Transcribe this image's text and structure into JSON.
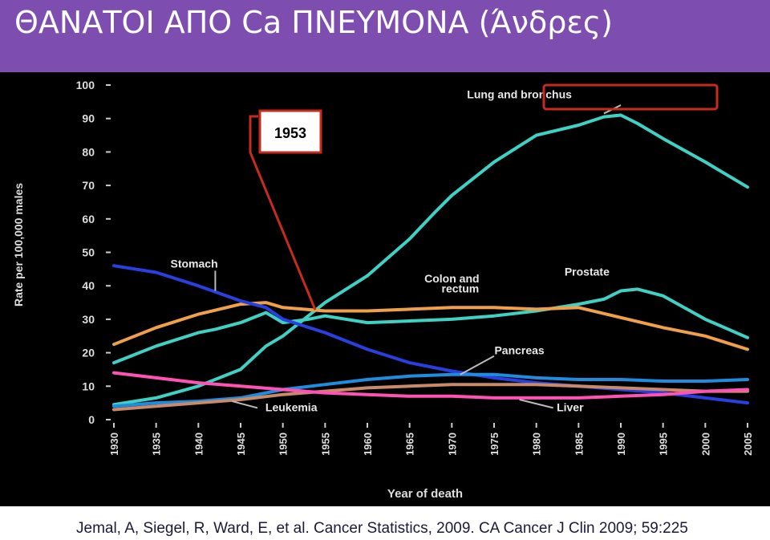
{
  "slide": {
    "title": "ΘΑΝΑΤΟΙ ΑΠΟ Ca ΠΝΕΥΜΟΝΑ (Άνδρες)",
    "citation": "Jemal, A, Siegel, R, Ward, E, et al. Cancer Statistics, 2009. CA Cancer J Clin 2009; 59:225",
    "highlight_year_label": "1953",
    "colors": {
      "title_band": "#7e4db0",
      "chart_bg": "#000000",
      "highlight": "#c62b1e"
    }
  },
  "chart_data": {
    "type": "line",
    "title": "",
    "xlabel": "Year of death",
    "ylabel": "Rate per 100,000 males",
    "xlim": [
      1930,
      2005
    ],
    "ylim": [
      0,
      100
    ],
    "xticks": [
      1930,
      1935,
      1940,
      1945,
      1950,
      1955,
      1960,
      1965,
      1970,
      1975,
      1980,
      1985,
      1990,
      1995,
      2000,
      2005
    ],
    "yticks": [
      0,
      10,
      20,
      30,
      40,
      50,
      60,
      70,
      80,
      90,
      100
    ],
    "grid": false,
    "series": [
      {
        "name": "Lung and bronchus",
        "color": "#3fd1c4",
        "x": [
          1930,
          1935,
          1940,
          1945,
          1948,
          1950,
          1953,
          1955,
          1960,
          1965,
          1968,
          1970,
          1975,
          1980,
          1985,
          1988,
          1990,
          1992,
          1995,
          2000,
          2005
        ],
        "y": [
          4.5,
          6.5,
          10,
          15,
          22,
          25,
          31,
          35,
          43,
          54,
          62,
          67,
          77,
          85,
          88,
          90.5,
          91,
          88.5,
          84,
          77,
          69.5
        ]
      },
      {
        "name": "Colon and rectum",
        "color": "#3fd1c4",
        "x": [
          1930,
          1935,
          1940,
          1942,
          1945,
          1948,
          1950,
          1953,
          1955,
          1960,
          1965,
          1970,
          1975,
          1980,
          1985,
          1988,
          1990,
          1992,
          1995,
          2000,
          2005
        ],
        "y": [
          17,
          22,
          26,
          27,
          29,
          32,
          29,
          30,
          31,
          29,
          29.5,
          30,
          31,
          32.5,
          34.5,
          36,
          38.5,
          39,
          37,
          30,
          24.5
        ]
      },
      {
        "name": "Prostate",
        "color": "#f0a04b",
        "x": [
          1930,
          1935,
          1940,
          1945,
          1948,
          1950,
          1955,
          1960,
          1965,
          1970,
          1975,
          1980,
          1985,
          1990,
          1995,
          2000,
          2005
        ],
        "y": [
          22.5,
          27.5,
          31.5,
          34.5,
          35,
          33.5,
          32.5,
          32.5,
          33,
          33.5,
          33.5,
          33,
          33.5,
          30.5,
          27.5,
          25,
          21
        ]
      },
      {
        "name": "Stomach",
        "color": "#2a3fe0",
        "x": [
          1930,
          1935,
          1940,
          1945,
          1948,
          1950,
          1955,
          1960,
          1965,
          1970,
          1975,
          1980,
          1985,
          1990,
          1995,
          2000,
          2005
        ],
        "y": [
          46,
          44,
          40,
          35.5,
          33.5,
          30,
          26,
          21,
          17,
          14.5,
          12.5,
          11,
          10,
          9,
          8,
          6.5,
          5
        ]
      },
      {
        "name": "Pancreas",
        "color": "#1e8de0",
        "x": [
          1930,
          1935,
          1940,
          1945,
          1950,
          1955,
          1960,
          1965,
          1970,
          1975,
          1980,
          1985,
          1990,
          1995,
          2000,
          2005
        ],
        "y": [
          4,
          5,
          5.5,
          6.5,
          9,
          10.5,
          12,
          13,
          13.5,
          13.5,
          12.5,
          12,
          12,
          11.5,
          11.5,
          12
        ]
      },
      {
        "name": "Leukemia",
        "color": "#c98a6a",
        "x": [
          1930,
          1935,
          1940,
          1945,
          1950,
          1955,
          1960,
          1965,
          1970,
          1975,
          1980,
          1985,
          1990,
          1995,
          2000,
          2005
        ],
        "y": [
          3,
          4,
          5,
          6,
          7.5,
          8.5,
          9.5,
          10,
          10.5,
          10.5,
          10.5,
          10,
          9.5,
          9,
          8.5,
          8.5
        ]
      },
      {
        "name": "Liver",
        "color": "#ff52b4",
        "x": [
          1930,
          1935,
          1940,
          1945,
          1950,
          1955,
          1960,
          1965,
          1970,
          1975,
          1980,
          1985,
          1990,
          1995,
          2000,
          2005
        ],
        "y": [
          14,
          12.5,
          11,
          10,
          9,
          8,
          7.5,
          7,
          7,
          6.5,
          6.5,
          6.5,
          7,
          7.5,
          8.5,
          9
        ]
      }
    ],
    "labels": [
      {
        "text": "Lung and bronchus",
        "x": 1978,
        "y": 96
      },
      {
        "text": "Stomach",
        "x": 1939.5,
        "y": 45.5
      },
      {
        "text": "Colon and",
        "x": 1970,
        "y": 41
      },
      {
        "text": "rectum",
        "x": 1971,
        "y": 38
      },
      {
        "text": "Prostate",
        "x": 1986,
        "y": 43
      },
      {
        "text": "Pancreas",
        "x": 1978,
        "y": 19.5
      },
      {
        "text": "Leukemia",
        "x": 1951,
        "y": 2.5
      },
      {
        "text": "Liver",
        "x": 1984,
        "y": 2.5
      }
    ]
  }
}
